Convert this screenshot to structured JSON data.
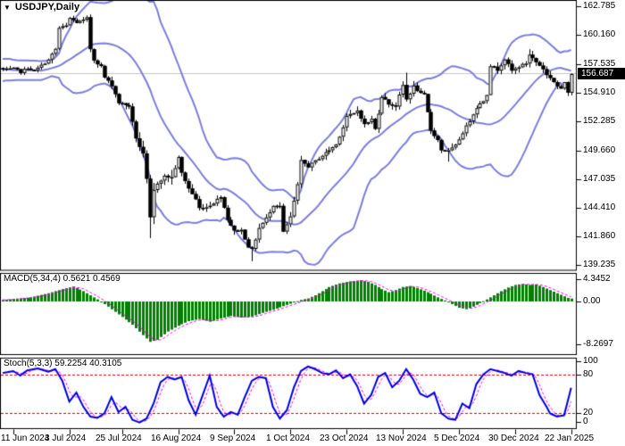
{
  "window": {
    "title": "USDJPY,Daily"
  },
  "quote": {
    "last": "156.687"
  },
  "indicators": {
    "macd_label": "MACD(5,34,4) 0.5621 0.4569",
    "stoch_label": "Stoch(5,3,3) 59.2254 40.3105"
  },
  "colors": {
    "background": "#ffffff",
    "border": "#000000",
    "text": "#000000",
    "bollinger": "#7d7ddd",
    "bull_body": "#ffffff",
    "bear_body": "#000000",
    "wick": "#000000",
    "price_line": "#c6c6c6",
    "tag_bg": "#000000",
    "tag_text": "#ffffff",
    "macd_bar": "#008000",
    "macd_signal": "#ff00ff",
    "stoch_k": "#0000dd",
    "stoch_d": "#ff00ff",
    "stoch_level": "#dd0000"
  },
  "chart_data": {
    "type": "candlestick",
    "title": "USDJPY,Daily",
    "symbol": "USDJPY",
    "timeframe": "Daily",
    "price_axis": {
      "labels": [
        "162.785",
        "160.160",
        "157.535",
        "154.910",
        "152.285",
        "149.660",
        "147.035",
        "144.410",
        "141.860",
        "139.235"
      ],
      "values": [
        162.785,
        160.16,
        157.535,
        154.91,
        152.285,
        149.66,
        147.035,
        144.41,
        141.86,
        139.235
      ],
      "current": 156.687,
      "ylim": [
        139.235,
        162.785
      ]
    },
    "x_axis": {
      "labels": [
        "11 Jun 2024",
        "3 Jul 2024",
        "25 Jul 2024",
        "16 Aug 2024",
        "9 Sep 2024",
        "1 Oct 2024",
        "23 Oct 2024",
        "13 Nov 2024",
        "5 Dec 2024",
        "30 Dec 2024",
        "22 Jan 2025"
      ],
      "tick_bars": [
        3,
        19,
        34,
        50,
        66,
        82,
        98,
        114,
        130,
        146,
        162
      ]
    },
    "series": {
      "bar_count": 163,
      "price_waypoints": [
        [
          0,
          157.0
        ],
        [
          3,
          157.1
        ],
        [
          5,
          156.8
        ],
        [
          7,
          157.2
        ],
        [
          9,
          156.9
        ],
        [
          11,
          157.4
        ],
        [
          13,
          157.9
        ],
        [
          15,
          158.9
        ],
        [
          16,
          160.8
        ],
        [
          18,
          161.0
        ],
        [
          19,
          161.7
        ],
        [
          21,
          161.3
        ],
        [
          23,
          161.5
        ],
        [
          24,
          161.7
        ],
        [
          25,
          158.9
        ],
        [
          26,
          157.9
        ],
        [
          28,
          157.3
        ],
        [
          29,
          156.3
        ],
        [
          31,
          155.6
        ],
        [
          33,
          154.0
        ],
        [
          34,
          153.9
        ],
        [
          36,
          153.7
        ],
        [
          37,
          152.2
        ],
        [
          38,
          150.8
        ],
        [
          39,
          150.0
        ],
        [
          40,
          149.3
        ],
        [
          41,
          147.0
        ],
        [
          42,
          143.5
        ],
        [
          43,
          146.0
        ],
        [
          44,
          146.7
        ],
        [
          46,
          147.3
        ],
        [
          48,
          147.2
        ],
        [
          50,
          149.0
        ],
        [
          51,
          147.6
        ],
        [
          53,
          146.2
        ],
        [
          55,
          145.2
        ],
        [
          56,
          144.4
        ],
        [
          58,
          144.5
        ],
        [
          60,
          144.9
        ],
        [
          62,
          145.5
        ],
        [
          64,
          143.4
        ],
        [
          66,
          142.3
        ],
        [
          68,
          142.4
        ],
        [
          70,
          140.9
        ],
        [
          71,
          140.6
        ],
        [
          73,
          142.6
        ],
        [
          75,
          143.5
        ],
        [
          77,
          144.7
        ],
        [
          79,
          144.6
        ],
        [
          80,
          142.2
        ],
        [
          82,
          143.6
        ],
        [
          84,
          146.5
        ],
        [
          85,
          148.7
        ],
        [
          87,
          148.2
        ],
        [
          89,
          148.7
        ],
        [
          91,
          149.2
        ],
        [
          93,
          149.7
        ],
        [
          95,
          150.2
        ],
        [
          97,
          151.8
        ],
        [
          98,
          152.8
        ],
        [
          100,
          153.0
        ],
        [
          101,
          153.3
        ],
        [
          103,
          152.0
        ],
        [
          105,
          152.5
        ],
        [
          106,
          151.6
        ],
        [
          108,
          154.6
        ],
        [
          110,
          153.9
        ],
        [
          112,
          153.7
        ],
        [
          114,
          155.6
        ],
        [
          115,
          154.3
        ],
        [
          117,
          155.5
        ],
        [
          119,
          154.8
        ],
        [
          120,
          154.7
        ],
        [
          122,
          151.5
        ],
        [
          124,
          150.6
        ],
        [
          125,
          149.7
        ],
        [
          127,
          149.6
        ],
        [
          129,
          150.1
        ],
        [
          131,
          151.3
        ],
        [
          133,
          152.4
        ],
        [
          135,
          153.6
        ],
        [
          137,
          154.2
        ],
        [
          138,
          154.8
        ],
        [
          139,
          157.4
        ],
        [
          141,
          157.0
        ],
        [
          143,
          158.0
        ],
        [
          145,
          156.9
        ],
        [
          147,
          157.3
        ],
        [
          149,
          157.6
        ],
        [
          150,
          158.4
        ],
        [
          152,
          157.7
        ],
        [
          154,
          157.1
        ],
        [
          155,
          156.5
        ],
        [
          156,
          156.3
        ],
        [
          158,
          155.5
        ],
        [
          159,
          155.2
        ],
        [
          160,
          155.9
        ],
        [
          161,
          155.0
        ],
        [
          162,
          156.687
        ]
      ],
      "special_bars": {
        "24": {
          "high": 161.95
        },
        "42": {
          "low": 141.68
        },
        "71": {
          "low": 139.58
        },
        "115": {
          "high": 156.74
        },
        "127": {
          "low": 148.64
        },
        "150": {
          "high": 158.87
        }
      },
      "bollinger": {
        "period": 20,
        "deviation": 2
      },
      "macd": {
        "params": "5,34,4",
        "last": 0.5621,
        "signal_last": 0.4569,
        "axis_labels": [
          "4.3452",
          "0.00",
          "-8.2697"
        ],
        "axis_values": [
          4.3452,
          0,
          -8.2697
        ],
        "waypoints": [
          [
            0,
            0.3
          ],
          [
            8,
            0.8
          ],
          [
            13,
            1.6
          ],
          [
            17,
            2.4
          ],
          [
            20,
            2.9
          ],
          [
            23,
            2.0
          ],
          [
            27,
            0.4
          ],
          [
            29,
            -0.5
          ],
          [
            33,
            -2.5
          ],
          [
            37,
            -4.5
          ],
          [
            40,
            -6.5
          ],
          [
            42,
            -7.8
          ],
          [
            44,
            -7.4
          ],
          [
            47,
            -5.8
          ],
          [
            50,
            -4.7
          ],
          [
            53,
            -3.8
          ],
          [
            56,
            -3.4
          ],
          [
            59,
            -3.9
          ],
          [
            62,
            -3.3
          ],
          [
            65,
            -2.8
          ],
          [
            68,
            -3.1
          ],
          [
            71,
            -2.9
          ],
          [
            74,
            -2.2
          ],
          [
            77,
            -1.6
          ],
          [
            80,
            -0.9
          ],
          [
            83,
            -0.2
          ],
          [
            85,
            0.3
          ],
          [
            87,
            0.6
          ],
          [
            89,
            1.2
          ],
          [
            91,
            2.0
          ],
          [
            93,
            2.8
          ],
          [
            96,
            3.5
          ],
          [
            99,
            3.9
          ],
          [
            102,
            4.1
          ],
          [
            104,
            3.8
          ],
          [
            106,
            3.2
          ],
          [
            108,
            2.4
          ],
          [
            110,
            1.8
          ],
          [
            112,
            2.2
          ],
          [
            114,
            2.8
          ],
          [
            116,
            3.0
          ],
          [
            118,
            2.6
          ],
          [
            120,
            2.1
          ],
          [
            122,
            1.5
          ],
          [
            124,
            0.8
          ],
          [
            126,
            0.2
          ],
          [
            128,
            -0.5
          ],
          [
            130,
            -1.2
          ],
          [
            132,
            -1.5
          ],
          [
            134,
            -1.0
          ],
          [
            136,
            -0.3
          ],
          [
            138,
            0.4
          ],
          [
            140,
            1.2
          ],
          [
            142,
            2.0
          ],
          [
            144,
            2.7
          ],
          [
            146,
            3.2
          ],
          [
            148,
            3.4
          ],
          [
            150,
            3.2
          ],
          [
            152,
            3.3
          ],
          [
            154,
            2.8
          ],
          [
            156,
            2.2
          ],
          [
            158,
            1.6
          ],
          [
            160,
            1.0
          ],
          [
            161,
            0.7
          ],
          [
            162,
            0.5621
          ]
        ]
      },
      "stochastic": {
        "params": "5,3,3",
        "k_last": 59.2254,
        "d_last": 40.3105,
        "levels": [
          80,
          20
        ],
        "axis_labels": [
          "100",
          "80",
          "20",
          "0"
        ],
        "axis_values": [
          100,
          80,
          20,
          0
        ],
        "waypoints": [
          [
            0,
            82
          ],
          [
            3,
            85
          ],
          [
            5,
            78
          ],
          [
            7,
            86
          ],
          [
            10,
            89
          ],
          [
            13,
            84
          ],
          [
            15,
            88
          ],
          [
            17,
            70
          ],
          [
            19,
            38
          ],
          [
            21,
            52
          ],
          [
            23,
            30
          ],
          [
            25,
            15
          ],
          [
            27,
            13
          ],
          [
            29,
            20
          ],
          [
            31,
            45
          ],
          [
            33,
            22
          ],
          [
            35,
            30
          ],
          [
            37,
            10
          ],
          [
            39,
            6
          ],
          [
            41,
            12
          ],
          [
            43,
            35
          ],
          [
            45,
            68
          ],
          [
            47,
            76
          ],
          [
            49,
            72
          ],
          [
            51,
            76
          ],
          [
            53,
            40
          ],
          [
            55,
            18
          ],
          [
            57,
            48
          ],
          [
            59,
            78
          ],
          [
            61,
            30
          ],
          [
            63,
            15
          ],
          [
            65,
            22
          ],
          [
            67,
            18
          ],
          [
            69,
            45
          ],
          [
            71,
            70
          ],
          [
            73,
            76
          ],
          [
            75,
            74
          ],
          [
            77,
            30
          ],
          [
            79,
            12
          ],
          [
            81,
            25
          ],
          [
            83,
            60
          ],
          [
            85,
            85
          ],
          [
            87,
            92
          ],
          [
            89,
            88
          ],
          [
            91,
            82
          ],
          [
            93,
            80
          ],
          [
            95,
            86
          ],
          [
            97,
            74
          ],
          [
            99,
            80
          ],
          [
            101,
            62
          ],
          [
            103,
            35
          ],
          [
            105,
            48
          ],
          [
            107,
            76
          ],
          [
            109,
            82
          ],
          [
            111,
            60
          ],
          [
            113,
            70
          ],
          [
            115,
            88
          ],
          [
            117,
            72
          ],
          [
            119,
            50
          ],
          [
            121,
            45
          ],
          [
            123,
            52
          ],
          [
            125,
            20
          ],
          [
            127,
            12
          ],
          [
            129,
            10
          ],
          [
            131,
            35
          ],
          [
            133,
            28
          ],
          [
            135,
            65
          ],
          [
            137,
            80
          ],
          [
            139,
            88
          ],
          [
            141,
            85
          ],
          [
            143,
            82
          ],
          [
            145,
            78
          ],
          [
            147,
            85
          ],
          [
            149,
            82
          ],
          [
            151,
            80
          ],
          [
            153,
            48
          ],
          [
            155,
            30
          ],
          [
            156,
            20
          ],
          [
            158,
            15
          ],
          [
            160,
            17
          ],
          [
            161,
            38
          ],
          [
            162,
            59.2254
          ]
        ]
      }
    }
  }
}
